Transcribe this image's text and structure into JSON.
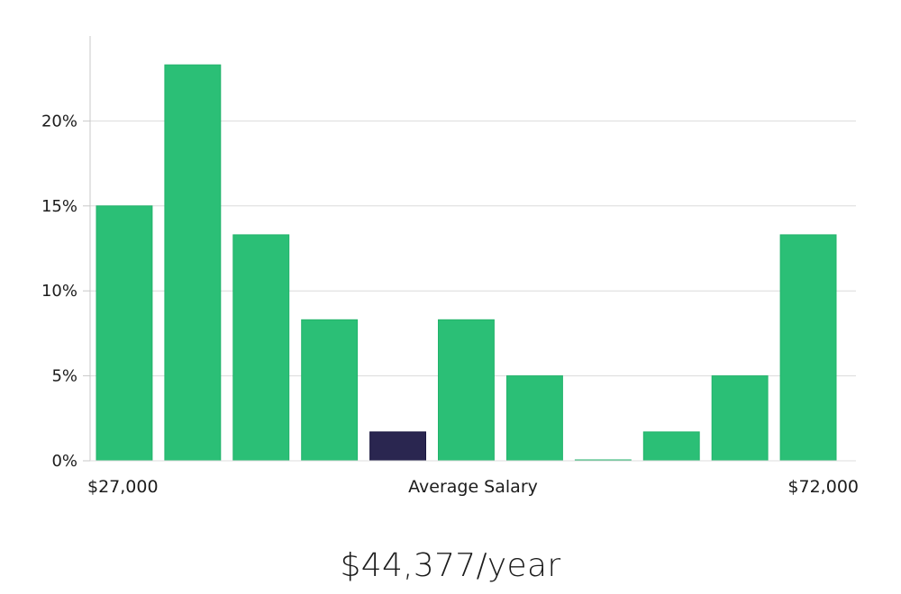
{
  "chart_data": {
    "type": "bar",
    "ylim": [
      0,
      25
    ],
    "yticks": [
      0,
      5,
      10,
      15,
      20
    ],
    "ytick_format": "{v}%",
    "grid": true,
    "values": [
      15.0,
      23.3,
      13.3,
      8.3,
      1.7,
      8.3,
      5.0,
      0.0,
      1.7,
      5.0,
      13.3
    ],
    "highlight_index": 4,
    "x_min_label": "$27,000",
    "x_center_label": "Average Salary",
    "x_max_label": "$72,000",
    "colors": {
      "bar": "#2bbf76",
      "bar_edge": "#22b36b",
      "highlight": "#2a2650",
      "grid": "#dcdcdc",
      "axis": "#c8c8c8"
    }
  },
  "summary": {
    "salary": "$44,377/year"
  }
}
